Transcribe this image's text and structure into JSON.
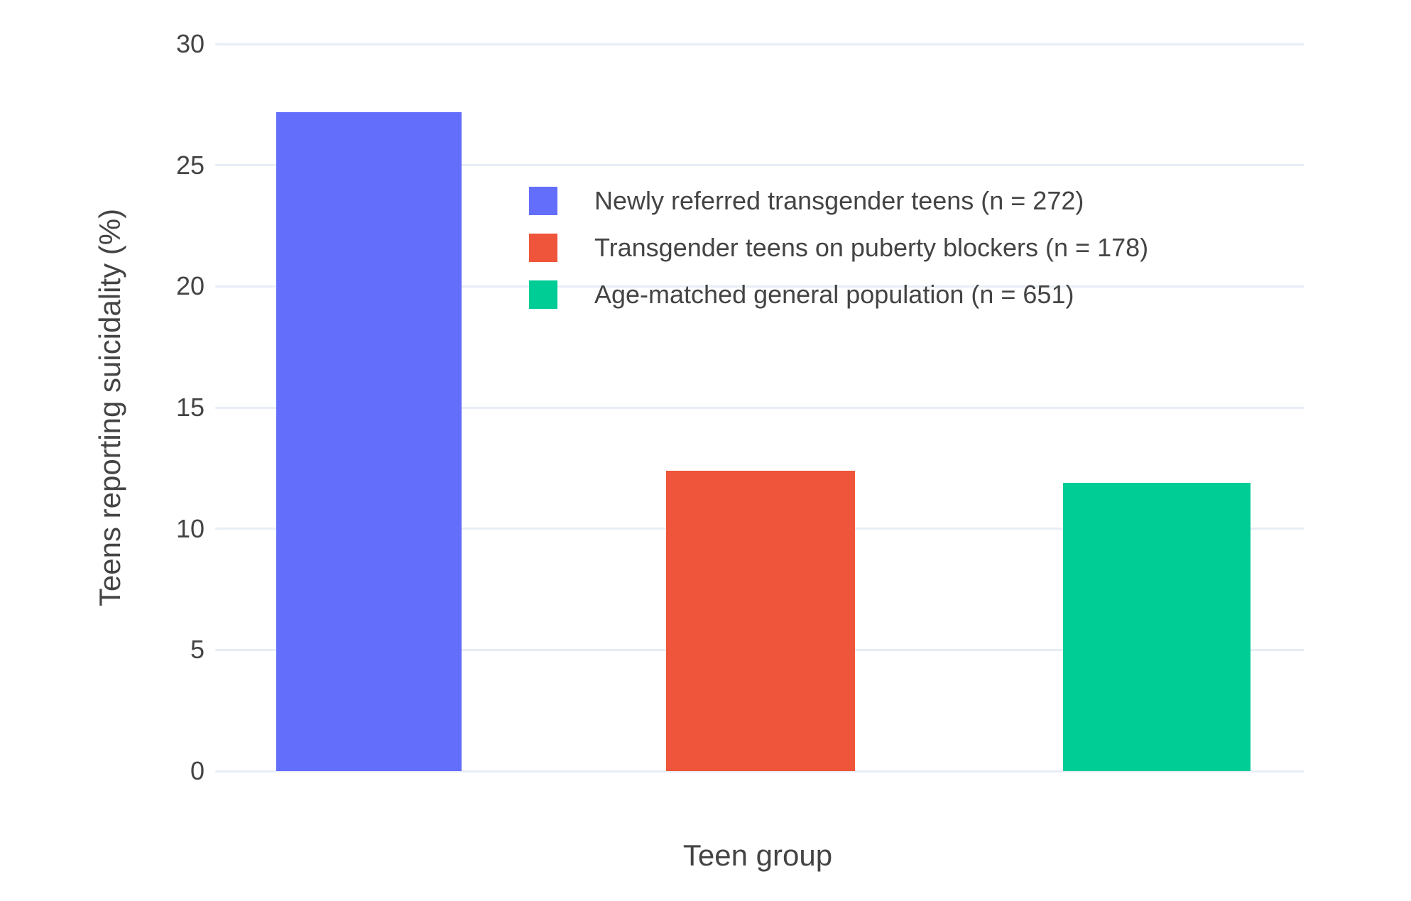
{
  "chart_data": {
    "type": "bar",
    "title": "",
    "xlabel": "Teen group",
    "ylabel": "Teens reporting suicidality (%)",
    "ylim": [
      0,
      30
    ],
    "yticks": [
      0,
      5,
      10,
      15,
      20,
      25,
      30
    ],
    "grid": true,
    "x_tick_labels_visible": false,
    "legend_position": "inside plot, upper area",
    "categories": [
      "Newly referred transgender teens (n = 272)",
      "Transgender teens on puberty blockers (n = 178)",
      "Age-matched general population (n = 651)"
    ],
    "bars": [
      {
        "label": "Newly referred transgender teens (n = 272)",
        "value": 27.2,
        "color": "#636EFA"
      },
      {
        "label": "Transgender teens on puberty blockers (n = 178)",
        "value": 12.4,
        "color": "#EF553B"
      },
      {
        "label": "Age-matched general population (n = 651)",
        "value": 11.9,
        "color": "#00CC96"
      }
    ],
    "colors": {
      "gridline": "#E8EDF6",
      "text": "#444444",
      "background": "#FFFFFF"
    }
  }
}
